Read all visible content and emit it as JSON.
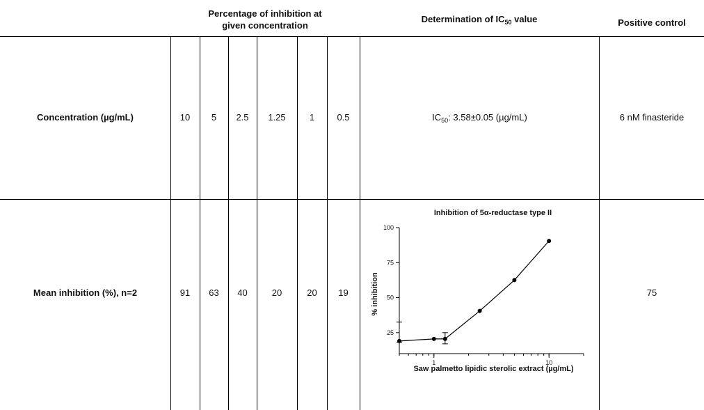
{
  "header": {
    "pct_line1": "Percentage of inhibition at",
    "pct_line2": "given concentration",
    "ic50_prefix": "Determination of IC",
    "ic50_sub": "50",
    "ic50_suffix": " value",
    "positive": "Positive control"
  },
  "rows": {
    "concentration": {
      "label": "Concentration (µg/mL)",
      "values": [
        "10",
        "5",
        "2.5",
        "1.25",
        "1",
        "0.5"
      ],
      "ic50_prefix": "IC",
      "ic50_sub": "50",
      "ic50_value": ": 3.58±0.05 (µg/mL)",
      "positive": "6 nM finasteride"
    },
    "inhibition": {
      "label": "Mean inhibition (%), n=2",
      "values": [
        "91",
        "63",
        "40",
        "20",
        "20",
        "19"
      ],
      "positive": "75"
    }
  },
  "chart_data": {
    "type": "line",
    "title": "Inhibition of 5α-reductase type II",
    "xlabel": "Saw palmetto lipidic sterolic extract (µg/mL)",
    "ylabel": "% inhibition",
    "xscale": "log",
    "xlim": [
      0.5,
      20
    ],
    "ylim": [
      10,
      100
    ],
    "xticks": [
      1,
      10
    ],
    "xtick_labels": [
      "1",
      "10"
    ],
    "yticks": [
      25,
      50,
      75,
      100
    ],
    "ytick_labels": [
      "25",
      "50",
      "75",
      "100"
    ],
    "x": [
      0.5,
      1,
      1.25,
      2.5,
      5,
      10
    ],
    "y": [
      19,
      20.5,
      20.5,
      40.5,
      62.5,
      90.5
    ],
    "error_low": [
      18,
      20.5,
      17,
      40.5,
      62.5,
      90.5
    ],
    "error_high": [
      32.5,
      20.5,
      25,
      40.5,
      62.5,
      90.5
    ]
  }
}
